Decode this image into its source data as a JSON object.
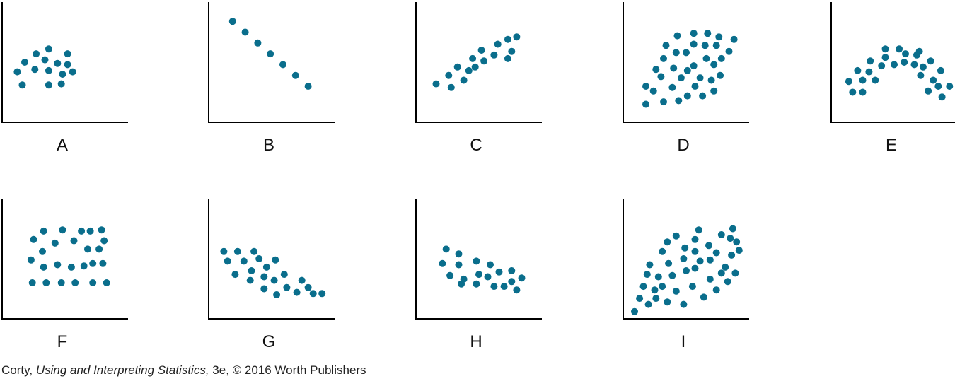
{
  "colors": {
    "dot": "#0a6e8c",
    "axis": "#000000"
  },
  "credit": {
    "author": "Corty,",
    "title": "Using and Interpreting Statistics,",
    "rest": "3e, © 2016 Worth Publishers"
  },
  "chart_data": [
    {
      "type": "scatter",
      "label": "A",
      "xlim": [
        0,
        10
      ],
      "ylim": [
        0,
        10
      ],
      "points": [
        [
          2.7,
          5.7
        ],
        [
          3.7,
          6.1
        ],
        [
          5.2,
          5.7
        ],
        [
          1.8,
          5.0
        ],
        [
          3.4,
          5.2
        ],
        [
          4.4,
          4.9
        ],
        [
          5.2,
          4.8
        ],
        [
          1.2,
          4.2
        ],
        [
          2.6,
          4.4
        ],
        [
          3.7,
          4.3
        ],
        [
          4.8,
          4.0
        ],
        [
          5.6,
          4.2
        ],
        [
          1.6,
          3.1
        ],
        [
          3.7,
          3.1
        ],
        [
          4.7,
          3.2
        ]
      ]
    },
    {
      "type": "scatter",
      "label": "B",
      "xlim": [
        0,
        10
      ],
      "ylim": [
        0,
        10
      ],
      "points": [
        [
          1.9,
          8.4
        ],
        [
          2.9,
          7.5
        ],
        [
          3.9,
          6.6
        ],
        [
          4.9,
          5.7
        ],
        [
          5.9,
          4.8
        ],
        [
          6.9,
          3.9
        ],
        [
          7.9,
          3.0
        ]
      ]
    },
    {
      "type": "scatter",
      "label": "C",
      "xlim": [
        0,
        10
      ],
      "ylim": [
        0,
        10
      ],
      "points": [
        [
          1.6,
          3.2
        ],
        [
          2.6,
          3.9
        ],
        [
          3.3,
          4.6
        ],
        [
          4.2,
          4.3
        ],
        [
          2.8,
          2.9
        ],
        [
          3.8,
          3.5
        ],
        [
          4.7,
          4.6
        ],
        [
          5.4,
          5.1
        ],
        [
          4.5,
          5.3
        ],
        [
          5.2,
          6.0
        ],
        [
          6.2,
          5.6
        ],
        [
          6.5,
          6.5
        ],
        [
          7.3,
          5.3
        ],
        [
          7.6,
          5.9
        ],
        [
          7.3,
          6.9
        ],
        [
          8.0,
          7.1
        ]
      ]
    },
    {
      "type": "scatter",
      "label": "D",
      "xlim": [
        0,
        10
      ],
      "ylim": [
        0,
        10
      ],
      "points": [
        [
          1.8,
          1.5
        ],
        [
          1.8,
          3.0
        ],
        [
          2.6,
          4.4
        ],
        [
          2.4,
          2.6
        ],
        [
          3.2,
          1.7
        ],
        [
          3.0,
          3.8
        ],
        [
          3.2,
          5.3
        ],
        [
          3.4,
          6.4
        ],
        [
          3.9,
          2.9
        ],
        [
          4.4,
          1.8
        ],
        [
          4.0,
          4.5
        ],
        [
          4.6,
          3.7
        ],
        [
          4.2,
          5.8
        ],
        [
          4.3,
          7.2
        ],
        [
          5.1,
          2.2
        ],
        [
          5.1,
          4.3
        ],
        [
          5.0,
          5.8
        ],
        [
          5.7,
          3.0
        ],
        [
          5.6,
          4.7
        ],
        [
          5.6,
          6.5
        ],
        [
          5.6,
          7.4
        ],
        [
          6.3,
          2.2
        ],
        [
          6.1,
          3.7
        ],
        [
          6.6,
          5.3
        ],
        [
          6.5,
          6.4
        ],
        [
          6.7,
          7.4
        ],
        [
          7.2,
          2.6
        ],
        [
          7.0,
          3.5
        ],
        [
          7.2,
          4.8
        ],
        [
          7.4,
          6.4
        ],
        [
          7.6,
          7.1
        ],
        [
          7.8,
          5.3
        ],
        [
          8.4,
          5.9
        ],
        [
          8.8,
          6.9
        ],
        [
          7.7,
          3.9
        ]
      ]
    },
    {
      "type": "scatter",
      "label": "E",
      "xlim": [
        0,
        10
      ],
      "ylim": [
        0,
        10
      ],
      "points": [
        [
          1.4,
          3.4
        ],
        [
          1.7,
          2.5
        ],
        [
          2.1,
          4.3
        ],
        [
          2.5,
          3.5
        ],
        [
          2.5,
          2.5
        ],
        [
          3.1,
          5.1
        ],
        [
          3.0,
          4.2
        ],
        [
          3.5,
          3.5
        ],
        [
          4.0,
          4.7
        ],
        [
          4.3,
          5.4
        ],
        [
          4.3,
          6.1
        ],
        [
          5.0,
          4.8
        ],
        [
          5.4,
          6.1
        ],
        [
          5.9,
          5.7
        ],
        [
          5.8,
          5.0
        ],
        [
          6.6,
          4.8
        ],
        [
          6.8,
          5.6
        ],
        [
          7.1,
          3.9
        ],
        [
          7.3,
          4.6
        ],
        [
          7.0,
          5.9
        ],
        [
          7.9,
          5.1
        ],
        [
          7.7,
          2.6
        ],
        [
          8.1,
          3.5
        ],
        [
          8.5,
          3.0
        ],
        [
          8.7,
          4.3
        ],
        [
          8.8,
          2.1
        ],
        [
          9.4,
          3.0
        ]
      ]
    },
    {
      "type": "scatter",
      "label": "F",
      "xlim": [
        0,
        10
      ],
      "ylim": [
        0,
        10
      ],
      "points": [
        [
          2.4,
          3.0
        ],
        [
          3.5,
          3.0
        ],
        [
          4.7,
          3.0
        ],
        [
          5.8,
          3.0
        ],
        [
          7.2,
          3.0
        ],
        [
          8.3,
          3.0
        ],
        [
          3.3,
          4.3
        ],
        [
          4.4,
          4.5
        ],
        [
          5.5,
          4.3
        ],
        [
          6.5,
          4.4
        ],
        [
          7.2,
          4.6
        ],
        [
          8.0,
          4.6
        ],
        [
          2.3,
          4.9
        ],
        [
          3.2,
          5.6
        ],
        [
          4.2,
          6.3
        ],
        [
          5.7,
          6.5
        ],
        [
          6.8,
          5.8
        ],
        [
          7.7,
          5.8
        ],
        [
          8.1,
          6.5
        ],
        [
          2.5,
          6.6
        ],
        [
          3.3,
          7.3
        ],
        [
          4.8,
          7.4
        ],
        [
          6.3,
          7.3
        ],
        [
          7.0,
          7.3
        ],
        [
          7.9,
          7.4
        ]
      ]
    },
    {
      "type": "scatter",
      "label": "G",
      "xlim": [
        0,
        10
      ],
      "ylim": [
        0,
        10
      ],
      "points": [
        [
          1.2,
          5.6
        ],
        [
          2.3,
          5.6
        ],
        [
          3.6,
          5.6
        ],
        [
          4.0,
          5.0
        ],
        [
          1.5,
          4.8
        ],
        [
          2.8,
          4.8
        ],
        [
          3.4,
          4.0
        ],
        [
          4.6,
          4.3
        ],
        [
          5.3,
          4.9
        ],
        [
          2.1,
          3.7
        ],
        [
          3.3,
          3.2
        ],
        [
          4.4,
          3.5
        ],
        [
          5.2,
          3.2
        ],
        [
          6.0,
          3.7
        ],
        [
          6.2,
          2.6
        ],
        [
          7.0,
          2.2
        ],
        [
          7.4,
          3.2
        ],
        [
          7.9,
          2.6
        ],
        [
          8.3,
          2.1
        ],
        [
          9.0,
          2.1
        ],
        [
          4.4,
          2.5
        ],
        [
          5.4,
          2.0
        ]
      ]
    },
    {
      "type": "scatter",
      "label": "H",
      "xlim": [
        0,
        10
      ],
      "ylim": [
        0,
        10
      ],
      "points": [
        [
          2.4,
          5.8
        ],
        [
          3.4,
          5.4
        ],
        [
          2.1,
          4.6
        ],
        [
          3.4,
          4.5
        ],
        [
          4.8,
          4.8
        ],
        [
          5.9,
          4.5
        ],
        [
          2.7,
          3.6
        ],
        [
          3.8,
          3.3
        ],
        [
          4.8,
          2.9
        ],
        [
          5.7,
          3.5
        ],
        [
          6.2,
          2.7
        ],
        [
          7.0,
          2.7
        ],
        [
          7.6,
          3.1
        ],
        [
          7.6,
          4.0
        ],
        [
          8.4,
          3.4
        ],
        [
          8.0,
          2.4
        ],
        [
          3.6,
          2.9
        ],
        [
          5.0,
          3.7
        ],
        [
          6.6,
          3.9
        ]
      ]
    },
    {
      "type": "scatter",
      "label": "I",
      "xlim": [
        0,
        10
      ],
      "ylim": [
        0,
        10
      ],
      "points": [
        [
          0.9,
          0.6
        ],
        [
          1.3,
          1.7
        ],
        [
          1.6,
          2.7
        ],
        [
          1.9,
          3.7
        ],
        [
          2.0,
          1.2
        ],
        [
          2.1,
          4.5
        ],
        [
          2.6,
          1.7
        ],
        [
          2.5,
          2.4
        ],
        [
          2.8,
          3.5
        ],
        [
          3.1,
          5.6
        ],
        [
          3.1,
          2.7
        ],
        [
          3.5,
          1.4
        ],
        [
          3.6,
          4.6
        ],
        [
          3.5,
          6.4
        ],
        [
          3.9,
          3.6
        ],
        [
          4.2,
          6.9
        ],
        [
          4.2,
          2.3
        ],
        [
          4.8,
          1.2
        ],
        [
          4.8,
          5.0
        ],
        [
          5.0,
          4.0
        ],
        [
          4.9,
          5.9
        ],
        [
          5.5,
          2.7
        ],
        [
          5.7,
          4.2
        ],
        [
          5.7,
          5.6
        ],
        [
          5.7,
          6.6
        ],
        [
          6.4,
          1.8
        ],
        [
          6.0,
          7.4
        ],
        [
          6.1,
          4.8
        ],
        [
          6.8,
          6.1
        ],
        [
          6.9,
          3.3
        ],
        [
          6.9,
          4.9
        ],
        [
          7.4,
          2.4
        ],
        [
          7.4,
          5.5
        ],
        [
          7.8,
          7.0
        ],
        [
          7.8,
          3.8
        ],
        [
          8.1,
          4.3
        ],
        [
          8.5,
          6.7
        ],
        [
          8.6,
          5.3
        ],
        [
          8.7,
          7.5
        ],
        [
          9.2,
          5.7
        ],
        [
          8.9,
          3.8
        ],
        [
          8.3,
          3.1
        ],
        [
          9.0,
          6.4
        ]
      ]
    }
  ]
}
